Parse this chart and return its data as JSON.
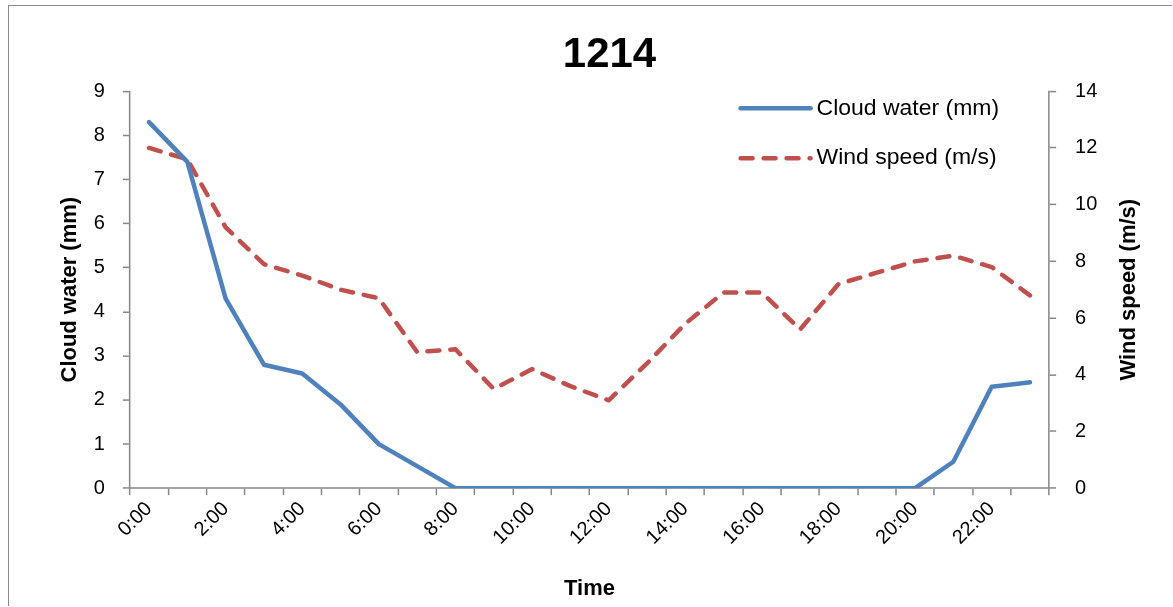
{
  "chart_data": {
    "type": "line",
    "title": "1214",
    "xlabel": "Time",
    "ylabel": "Cloud water (mm)",
    "y2label": "Wind speed (m/s)",
    "categories": [
      "0:00",
      null,
      "2:00",
      null,
      "4:00",
      null,
      "6:00",
      null,
      "8:00",
      null,
      "10:00",
      null,
      "12:00",
      null,
      "14:00",
      null,
      "16:00",
      null,
      "18:00",
      null,
      "20:00",
      null,
      "22:00",
      null
    ],
    "series": [
      {
        "name": "Cloud water (mm)",
        "color": "#4f81bd",
        "line_style": "solid",
        "values": [
          8.3,
          7.4,
          4.3,
          2.8,
          2.6,
          1.9,
          1.0,
          0.5,
          0,
          0,
          0,
          0,
          0,
          0,
          0,
          0,
          0,
          0,
          0,
          0,
          0,
          0.6,
          2.3,
          2.4
        ]
      },
      {
        "name": "Wind speed (m/s)",
        "color": "#c0504d",
        "line_style": "dashed",
        "axis": "y2",
        "values": [
          12.0,
          11.6,
          9.2,
          7.9,
          7.5,
          7.0,
          6.7,
          4.8,
          4.9,
          3.5,
          4.2,
          3.6,
          3.1,
          4.4,
          5.8,
          6.9,
          6.9,
          5.6,
          7.2,
          7.6,
          8.0,
          8.2,
          7.8,
          6.8
        ]
      }
    ],
    "ylim": [
      0,
      9
    ],
    "yticks": [
      0,
      1,
      2,
      3,
      4,
      5,
      6,
      7,
      8,
      9
    ],
    "y2lim": [
      0,
      14
    ],
    "y2ticks": [
      0,
      2,
      4,
      6,
      8,
      10,
      12,
      14
    ],
    "legend": "top right"
  }
}
